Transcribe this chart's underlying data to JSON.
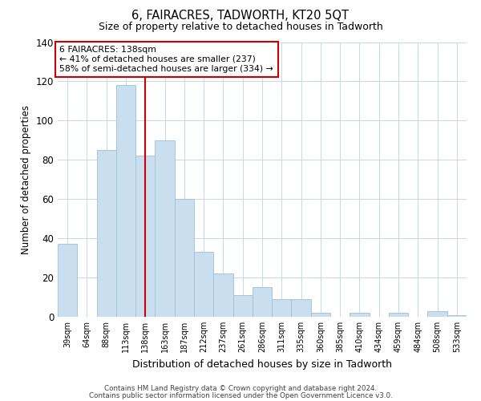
{
  "title": "6, FAIRACRES, TADWORTH, KT20 5QT",
  "subtitle": "Size of property relative to detached houses in Tadworth",
  "xlabel": "Distribution of detached houses by size in Tadworth",
  "ylabel": "Number of detached properties",
  "bar_labels": [
    "39sqm",
    "64sqm",
    "88sqm",
    "113sqm",
    "138sqm",
    "163sqm",
    "187sqm",
    "212sqm",
    "237sqm",
    "261sqm",
    "286sqm",
    "311sqm",
    "335sqm",
    "360sqm",
    "385sqm",
    "410sqm",
    "434sqm",
    "459sqm",
    "484sqm",
    "508sqm",
    "533sqm"
  ],
  "bar_values": [
    37,
    0,
    85,
    118,
    82,
    90,
    60,
    33,
    22,
    11,
    15,
    9,
    9,
    2,
    0,
    2,
    0,
    2,
    0,
    3,
    1
  ],
  "bar_color": "#c9dff0",
  "bar_edge_color": "#a0bfd8",
  "vline_x_index": 4,
  "vline_color": "#cc0000",
  "annotation_title": "6 FAIRACRES: 138sqm",
  "annotation_line1": "← 41% of detached houses are smaller (237)",
  "annotation_line2": "58% of semi-detached houses are larger (334) →",
  "annotation_box_color": "#ffffff",
  "annotation_box_edge": "#cc0000",
  "ylim": [
    0,
    140
  ],
  "yticks": [
    0,
    20,
    40,
    60,
    80,
    100,
    120,
    140
  ],
  "footer_line1": "Contains HM Land Registry data © Crown copyright and database right 2024.",
  "footer_line2": "Contains public sector information licensed under the Open Government Licence v3.0.",
  "background_color": "#ffffff",
  "grid_color": "#c8d8e8"
}
